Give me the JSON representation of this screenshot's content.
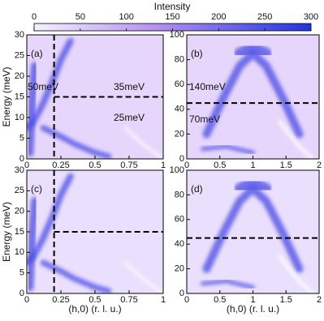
{
  "colorbar": {
    "title": "Intensity",
    "lim": [
      0,
      300
    ],
    "ticks": [
      0,
      50,
      100,
      150,
      200,
      250,
      300
    ]
  },
  "chart_data": [
    {
      "type": "heatmap",
      "label": "(a)",
      "ylabel": "Energy (meV)",
      "xlim": [
        0,
        1
      ],
      "xticks": [
        0,
        0.25,
        0.5,
        0.75,
        1
      ],
      "ylim": [
        0,
        30
      ],
      "yticks": [
        0,
        5,
        10,
        15,
        20,
        25,
        30
      ],
      "vlines": [
        0.2
      ],
      "hlines": [
        15
      ],
      "annotations": [
        "50meV",
        "35meV",
        "25meV"
      ]
    },
    {
      "type": "heatmap",
      "label": "(b)",
      "xlim": [
        0,
        2
      ],
      "xticks": [
        0,
        0.5,
        1,
        1.5,
        2
      ],
      "ylim": [
        0,
        100
      ],
      "yticks": [
        0,
        20,
        40,
        60,
        80,
        100
      ],
      "hlines": [
        45
      ],
      "annotations": [
        "140meV",
        "70meV"
      ]
    },
    {
      "type": "heatmap",
      "label": "(c)",
      "ylabel": "Energy (meV)",
      "xlabel": "(h,0) (r. l. u.)",
      "xlim": [
        0,
        1
      ],
      "xticks": [
        0,
        0.25,
        0.5,
        0.75,
        1
      ],
      "ylim": [
        0,
        30
      ],
      "yticks": [
        0,
        5,
        10,
        15,
        20,
        25,
        30
      ],
      "vlines": [
        0.2
      ],
      "hlines": [
        15
      ]
    },
    {
      "type": "heatmap",
      "label": "(d)",
      "xlabel": "(h,0) (r. l. u.)",
      "xlim": [
        0,
        2
      ],
      "xticks": [
        0,
        0.5,
        1,
        1.5,
        2
      ],
      "ylim": [
        0,
        100
      ],
      "yticks": [
        0,
        20,
        40,
        60,
        80,
        100
      ],
      "hlines": [
        45
      ]
    }
  ]
}
